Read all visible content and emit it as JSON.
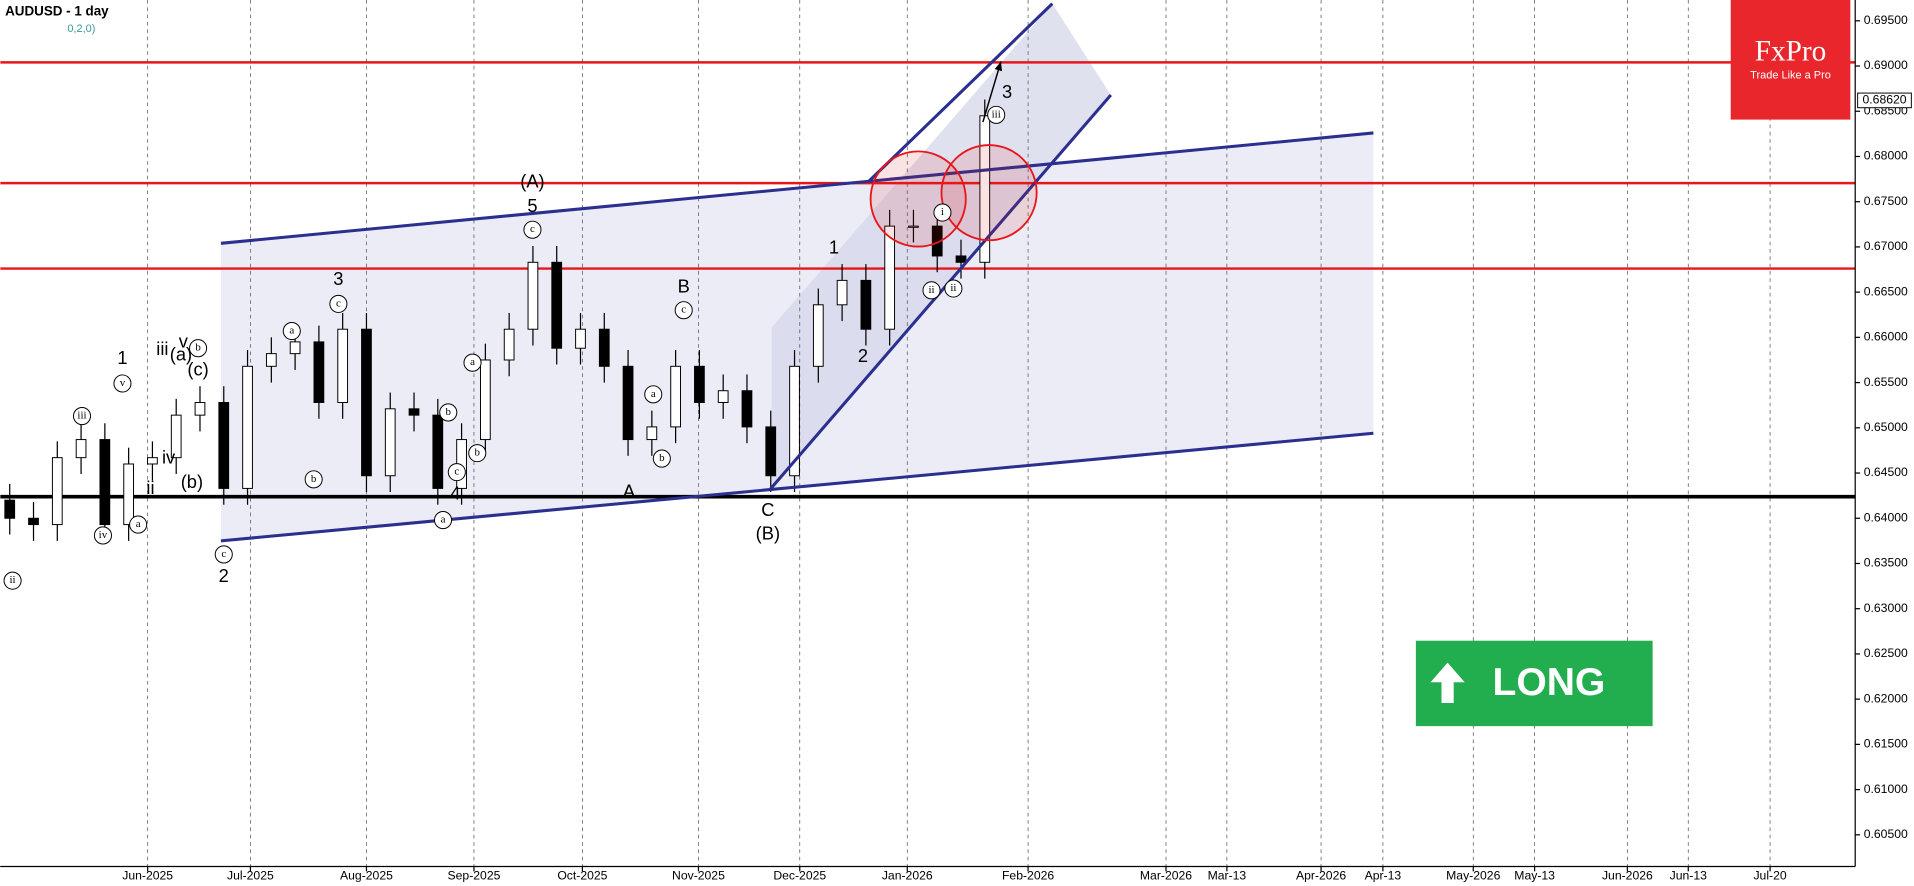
{
  "chart_data": {
    "type": "candlestick",
    "title": "AUDUSD - 1 day",
    "subtitle": "0,2,0)",
    "x": [
      2,
      7,
      12,
      17,
      22,
      27,
      32,
      37,
      42,
      47,
      52,
      57,
      62,
      67,
      72,
      77,
      82,
      87,
      92,
      97,
      102,
      107,
      112,
      117,
      122,
      127,
      132,
      137,
      142,
      147,
      152,
      157,
      162,
      167,
      172,
      177,
      182,
      187,
      192,
      197,
      202,
      207
    ],
    "open": [
      0.642,
      0.64,
      0.6393,
      0.6467,
      0.6487,
      0.6393,
      0.646,
      0.6467,
      0.6514,
      0.6528,
      0.6433,
      0.6568,
      0.6582,
      0.6595,
      0.6528,
      0.6609,
      0.6447,
      0.6521,
      0.6514,
      0.6433,
      0.6487,
      0.6575,
      0.6609,
      0.6683,
      0.6588,
      0.6609,
      0.6568,
      0.6487,
      0.6501,
      0.6568,
      0.6528,
      0.6541,
      0.6501,
      0.6447,
      0.6568,
      0.6636,
      0.6663,
      0.6609,
      0.6723,
      0.6723,
      0.669,
      0.6683
    ],
    "high": [
      0.6438,
      0.6418,
      0.6485,
      0.6505,
      0.6505,
      0.6478,
      0.6485,
      0.6532,
      0.6546,
      0.6546,
      0.6586,
      0.66,
      0.6613,
      0.6613,
      0.6627,
      0.6627,
      0.6539,
      0.6539,
      0.6532,
      0.6505,
      0.6593,
      0.6627,
      0.6701,
      0.6701,
      0.6627,
      0.6627,
      0.6586,
      0.6519,
      0.6586,
      0.6586,
      0.6559,
      0.6559,
      0.6519,
      0.6586,
      0.6654,
      0.6681,
      0.6681,
      0.6741,
      0.6741,
      0.6741,
      0.6708,
      0.6863
    ],
    "low": [
      0.6382,
      0.6375,
      0.6375,
      0.6449,
      0.6375,
      0.6375,
      0.6442,
      0.6449,
      0.6496,
      0.6415,
      0.6415,
      0.655,
      0.6564,
      0.651,
      0.651,
      0.6429,
      0.6429,
      0.6496,
      0.6415,
      0.6415,
      0.6469,
      0.6557,
      0.6591,
      0.657,
      0.657,
      0.655,
      0.6469,
      0.6469,
      0.6483,
      0.651,
      0.651,
      0.6483,
      0.6429,
      0.6429,
      0.655,
      0.6618,
      0.6591,
      0.6591,
      0.6705,
      0.6672,
      0.6665,
      0.6665
    ],
    "close": [
      0.64,
      0.6393,
      0.6467,
      0.6487,
      0.6393,
      0.646,
      0.6467,
      0.6514,
      0.6528,
      0.6433,
      0.6568,
      0.6582,
      0.6595,
      0.6528,
      0.6609,
      0.6447,
      0.6521,
      0.6514,
      0.6433,
      0.6487,
      0.6575,
      0.6609,
      0.6683,
      0.6588,
      0.6609,
      0.6568,
      0.6487,
      0.6501,
      0.6568,
      0.6528,
      0.6541,
      0.6501,
      0.6447,
      0.6568,
      0.6636,
      0.6663,
      0.6609,
      0.6723,
      0.6723,
      0.669,
      0.6683,
      0.6845
    ],
    "up_color": "#ffffff",
    "down_color": "#000000",
    "xlim": [
      0,
      390
    ],
    "ylim": [
      0.6015,
      0.6973
    ],
    "xticks": [
      {
        "value": 31,
        "label": "Jun-2025"
      },
      {
        "value": 52.6,
        "label": "Jul-2025"
      },
      {
        "value": 77,
        "label": "Aug-2025"
      },
      {
        "value": 99.6,
        "label": "Sep-2025"
      },
      {
        "value": 122.4,
        "label": "Oct-2025"
      },
      {
        "value": 146.8,
        "label": "Nov-2025"
      },
      {
        "value": 168.1,
        "label": "Dec-2025"
      },
      {
        "value": 190.7,
        "label": "Jan-2026"
      },
      {
        "value": 216.1,
        "label": "Feb-2026"
      },
      {
        "value": 245.1,
        "label": "Mar-2026"
      },
      {
        "value": 257.9,
        "label": "Mar-13"
      },
      {
        "value": 277.7,
        "label": "Apr-2026"
      },
      {
        "value": 290.7,
        "label": "Apr-13"
      },
      {
        "value": 309.7,
        "label": "May-2026"
      },
      {
        "value": 322.6,
        "label": "May-13"
      },
      {
        "value": 342.1,
        "label": "Jun-2026"
      },
      {
        "value": 354.9,
        "label": "Jun-13"
      },
      {
        "value": 372.1,
        "label": "Jul-20"
      }
    ],
    "yticks": [
      {
        "value": 0.695,
        "label": "0.69500"
      },
      {
        "value": 0.69,
        "label": "0.69000"
      },
      {
        "value": 0.685,
        "label": "0.68500"
      },
      {
        "value": 0.68,
        "label": "0.68000"
      },
      {
        "value": 0.675,
        "label": "0.67500"
      },
      {
        "value": 0.67,
        "label": "0.67000"
      },
      {
        "value": 0.665,
        "label": "0.66500"
      },
      {
        "value": 0.66,
        "label": "0.66000"
      },
      {
        "value": 0.655,
        "label": "0.65500"
      },
      {
        "value": 0.65,
        "label": "0.65000"
      },
      {
        "value": 0.645,
        "label": "0.64500"
      },
      {
        "value": 0.64,
        "label": "0.64000"
      },
      {
        "value": 0.635,
        "label": "0.63500"
      },
      {
        "value": 0.63,
        "label": "0.63000"
      },
      {
        "value": 0.625,
        "label": "0.62500"
      },
      {
        "value": 0.62,
        "label": "0.62000"
      },
      {
        "value": 0.615,
        "label": "0.61500"
      },
      {
        "value": 0.61,
        "label": "0.61000"
      },
      {
        "value": 0.605,
        "label": "0.60500"
      }
    ],
    "grid": true,
    "current_price": {
      "value": 0.6862,
      "label": "0.68620"
    },
    "hlines": [
      {
        "value": 0.6904,
        "color": "#e8161b"
      },
      {
        "value": 0.67705,
        "color": "#e8161b"
      },
      {
        "value": 0.66761,
        "color": "#e8161b"
      },
      {
        "value": 0.64238,
        "color": "#000000"
      }
    ],
    "shaded_areas": [
      {
        "x": [
          46.4,
          288.7,
          288.7,
          46.4
        ],
        "y": [
          0.6704,
          0.6826,
          0.6494,
          0.6375
        ],
        "color": "#e4e5f2"
      },
      {
        "x": [
          162.2,
          221.2,
          233.5,
          162.2
        ],
        "y": [
          0.6611,
          0.6969,
          0.6868,
          0.6431
        ],
        "color": "#d5d7ea"
      }
    ],
    "trendlines": [
      {
        "x": [
          46.4,
          288.7
        ],
        "y": [
          0.6375,
          0.6494
        ],
        "color": "#2b2f8f"
      },
      {
        "x": [
          46.4,
          288.7
        ],
        "y": [
          0.6704,
          0.6826
        ],
        "color": "#2b2f8f"
      },
      {
        "x": [
          161.7,
          233.5
        ],
        "y": [
          0.6431,
          0.6868
        ],
        "color": "#2b2f8f"
      },
      {
        "x": [
          182.7,
          221.2
        ],
        "y": [
          0.6773,
          0.6969
        ],
        "color": "#2b2f8f"
      }
    ],
    "arrow": {
      "x": [
        206.6,
        210.4
      ],
      "y": [
        0.6838,
        0.6905
      ]
    },
    "circles": [
      {
        "x": 193.0,
        "y": 0.6753,
        "color": "#e8161b"
      },
      {
        "x": 207.9,
        "y": 0.676,
        "color": "#e8161b"
      }
    ],
    "annotations": [
      {
        "text": "1",
        "x": 25.7,
        "y": 0.6576,
        "circled": false
      },
      {
        "text": "v",
        "x": 25.7,
        "y": 0.6549,
        "circled": true
      },
      {
        "text": "iii",
        "x": 17.2,
        "y": 0.6513,
        "circled": true
      },
      {
        "text": "iv",
        "x": 21.6,
        "y": 0.6381,
        "circled": true
      },
      {
        "text": "a",
        "x": 29.0,
        "y": 0.6393,
        "circled": true
      },
      {
        "text": "ii",
        "x": 2.6,
        "y": 0.6331,
        "circled": true
      },
      {
        "text": "iii",
        "x": 34.1,
        "y": 0.6586,
        "circled": false
      },
      {
        "text": "v",
        "x": 38.5,
        "y": 0.6594,
        "circled": false
      },
      {
        "text": "iv",
        "x": 35.4,
        "y": 0.6466,
        "circled": false
      },
      {
        "text": "ii",
        "x": 31.6,
        "y": 0.6432,
        "circled": false
      },
      {
        "text": "(a)",
        "x": 38.0,
        "y": 0.658,
        "circled": false
      },
      {
        "text": "(b)",
        "x": 40.3,
        "y": 0.6439,
        "circled": false
      },
      {
        "text": "(c)",
        "x": 41.6,
        "y": 0.6563,
        "circled": false
      },
      {
        "text": "b",
        "x": 41.6,
        "y": 0.6588,
        "circled": true
      },
      {
        "text": "2",
        "x": 47.0,
        "y": 0.6335,
        "circled": false
      },
      {
        "text": "c",
        "x": 47.0,
        "y": 0.636,
        "circled": true
      },
      {
        "text": "3",
        "x": 71.1,
        "y": 0.6663,
        "circled": false
      },
      {
        "text": "c",
        "x": 71.1,
        "y": 0.6637,
        "circled": true
      },
      {
        "text": "b",
        "x": 65.9,
        "y": 0.6443,
        "circled": true
      },
      {
        "text": "a",
        "x": 61.3,
        "y": 0.6607,
        "circled": true
      },
      {
        "text": "4",
        "x": 95.7,
        "y": 0.6426,
        "circled": false
      },
      {
        "text": "a",
        "x": 93.1,
        "y": 0.6398,
        "circled": true
      },
      {
        "text": "b",
        "x": 94.2,
        "y": 0.6517,
        "circled": true
      },
      {
        "text": "c",
        "x": 96.0,
        "y": 0.6451,
        "circled": true
      },
      {
        "text": "b",
        "x": 100.3,
        "y": 0.6472,
        "circled": true
      },
      {
        "text": "a",
        "x": 99.3,
        "y": 0.6572,
        "circled": true
      },
      {
        "text": "(A)",
        "x": 111.9,
        "y": 0.6771,
        "circled": false
      },
      {
        "text": "5",
        "x": 111.9,
        "y": 0.6744,
        "circled": false
      },
      {
        "text": "c",
        "x": 111.9,
        "y": 0.6719,
        "circled": true
      },
      {
        "text": "B",
        "x": 143.7,
        "y": 0.6655,
        "circled": false
      },
      {
        "text": "c",
        "x": 143.7,
        "y": 0.663,
        "circled": true
      },
      {
        "text": "a",
        "x": 137.3,
        "y": 0.6537,
        "circled": true
      },
      {
        "text": "b",
        "x": 139.1,
        "y": 0.6466,
        "circled": true
      },
      {
        "text": "A",
        "x": 132.2,
        "y": 0.6428,
        "circled": false
      },
      {
        "text": "C",
        "x": 161.4,
        "y": 0.6408,
        "circled": false
      },
      {
        "text": "(B)",
        "x": 161.4,
        "y": 0.6382,
        "circled": false
      },
      {
        "text": "1",
        "x": 175.3,
        "y": 0.6698,
        "circled": false
      },
      {
        "text": "2",
        "x": 181.4,
        "y": 0.6578,
        "circled": false
      },
      {
        "text": "i",
        "x": 198.1,
        "y": 0.6738,
        "circled": true
      },
      {
        "text": "ii",
        "x": 195.8,
        "y": 0.6652,
        "circled": true
      },
      {
        "text": "ii",
        "x": 200.4,
        "y": 0.6654,
        "circled": true
      },
      {
        "text": "iii",
        "x": 209.4,
        "y": 0.6846,
        "circled": true
      },
      {
        "text": "3",
        "x": 211.7,
        "y": 0.687,
        "circled": false
      }
    ],
    "logo": {
      "name": "FxPro",
      "tagline": "Trade Like a Pro"
    },
    "signal": "LONG"
  }
}
